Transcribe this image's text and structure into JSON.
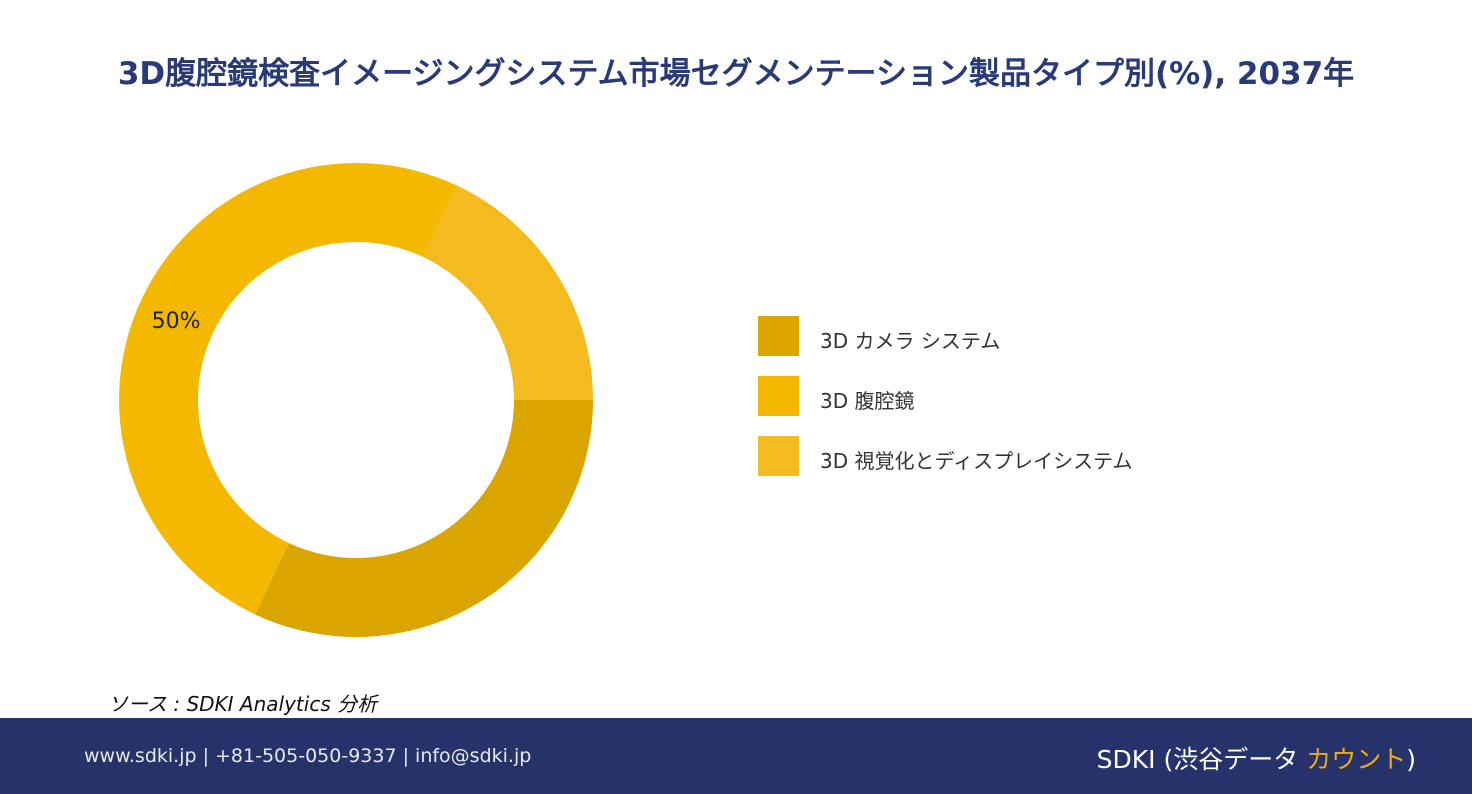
{
  "title": "3D腹腔鏡検査イメージングシステム市場セグメンテーション製品タイプ別(%), 2037年",
  "chart_data": {
    "type": "pie",
    "donut": true,
    "categories": [
      "3D カメラ システム",
      "3D 腹腔鏡",
      "3D 視覚化とディスプレイシステム"
    ],
    "values": [
      32,
      50,
      18
    ],
    "colors": [
      "#dba500",
      "#f5b800",
      "#f3bb1f"
    ],
    "data_labels": [
      "",
      "50%",
      ""
    ],
    "legend_position": "right"
  },
  "source": "ソース : SDKI Analytics 分析",
  "footer": {
    "contact": "www.sdki.jp | +81-505-050-9337 | info@sdki.jp",
    "brand_prefix": "SDKI (渋谷データ ",
    "brand_accent": "カウント",
    "brand_suffix": ")"
  }
}
